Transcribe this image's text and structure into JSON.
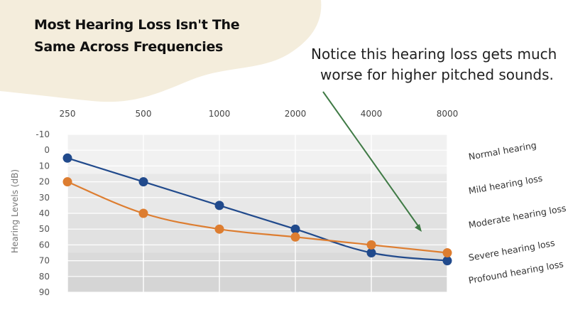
{
  "title_line1": "Most Hearing Loss Isn't The",
  "title_line2": "Same Across Frequencies",
  "annotation_line1": "Notice this hearing loss gets much",
  "annotation_line2": "worse for higher pitched sounds.",
  "colors": {
    "blob": "#f4eddc",
    "series_blue": "#214a8c",
    "series_orange": "#dd7d30",
    "arrow": "#3f7a45",
    "grid": "#ffffff"
  },
  "chart_data": {
    "type": "line",
    "x_categories": [
      "250",
      "500",
      "1000",
      "2000",
      "4000",
      "8000"
    ],
    "x_axis_position": "top",
    "y_ticks": [
      "-10",
      "0",
      "10",
      "20",
      "30",
      "40",
      "50",
      "60",
      "70",
      "80",
      "90"
    ],
    "ylim": [
      -10,
      90
    ],
    "y_inverted": true,
    "ylabel": "Hearing Levels (dB)",
    "grid": true,
    "series": [
      {
        "color": "#214a8c",
        "values": [
          5,
          20,
          35,
          50,
          65,
          70
        ]
      },
      {
        "color": "#dd7d30",
        "values": [
          20,
          40,
          50,
          55,
          60,
          65
        ]
      }
    ],
    "bands": [
      {
        "label": "Normal hearing",
        "range": [
          -10,
          15
        ],
        "shade": "#f1f1f1"
      },
      {
        "label": "Mild hearing loss",
        "range": [
          15,
          40
        ],
        "shade": "#e8e8e8"
      },
      {
        "label": "Moderate hearing loss",
        "range": [
          40,
          65
        ],
        "shade": "#e1e1e1"
      },
      {
        "label": "Severe hearing loss",
        "range": [
          65,
          80
        ],
        "shade": "#dadada"
      },
      {
        "label": "Profound hearing loss",
        "range": [
          80,
          90
        ],
        "shade": "#d5d5d5"
      }
    ]
  }
}
